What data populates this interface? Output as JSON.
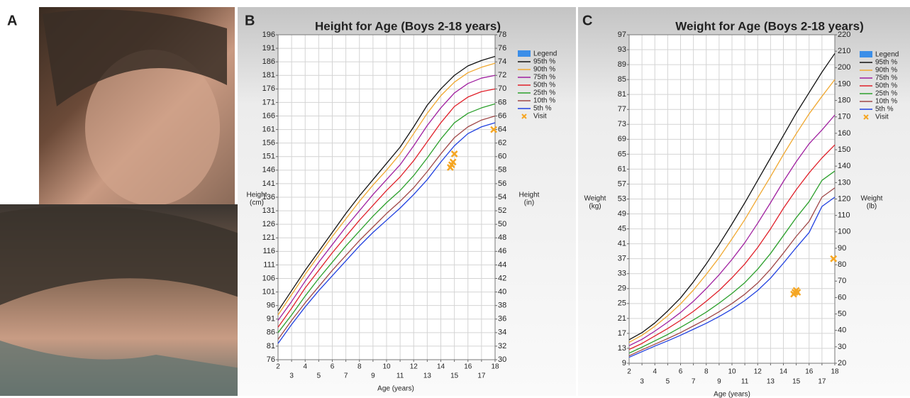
{
  "panel_labels": [
    "A",
    "B",
    "C"
  ],
  "chart_data": [
    {
      "type": "line",
      "title": "Height for Age (Boys 2-18 years)",
      "xlabel": "Age (years)",
      "ylabel": [
        "Height",
        "(cm)"
      ],
      "y2label": [
        "Height",
        "(in)"
      ],
      "legend_title": "Legend",
      "legend_color": "#3b8ee8",
      "grid": true,
      "xlim": [
        2,
        18
      ],
      "xticks": [
        2,
        3,
        4,
        5,
        6,
        7,
        8,
        9,
        10,
        11,
        12,
        13,
        14,
        15,
        16,
        17,
        18
      ],
      "ylim": [
        76,
        196
      ],
      "yticks": [
        76,
        81,
        86,
        91,
        96,
        101,
        106,
        111,
        116,
        121,
        126,
        131,
        136,
        141,
        146,
        151,
        156,
        161,
        166,
        171,
        176,
        181,
        186,
        191,
        196
      ],
      "y2lim": [
        30,
        78
      ],
      "y2ticks": [
        30,
        32,
        34,
        36,
        38,
        40,
        42,
        44,
        46,
        48,
        50,
        52,
        54,
        56,
        58,
        60,
        62,
        64,
        66,
        68,
        70,
        72,
        74,
        76,
        78
      ],
      "x": [
        2,
        3,
        4,
        5,
        6,
        7,
        8,
        9,
        10,
        11,
        12,
        13,
        14,
        15,
        16,
        17,
        18
      ],
      "series": [
        {
          "name": "95th %",
          "color": "#111111",
          "values": [
            94,
            101.5,
            109,
            116,
            123,
            130,
            136.5,
            142.5,
            148.5,
            154.5,
            162,
            170,
            176,
            181,
            184.5,
            186.5,
            188
          ]
        },
        {
          "name": "90th %",
          "color": "#f0a830",
          "values": [
            92.5,
            100,
            107.5,
            114.5,
            121.5,
            128,
            134.5,
            140.5,
            146,
            152,
            159.5,
            167,
            173.5,
            178.5,
            182,
            184,
            185.5
          ]
        },
        {
          "name": "75th %",
          "color": "#a020a0",
          "values": [
            90.5,
            97.5,
            105,
            112,
            118.5,
            125,
            131,
            137,
            142.5,
            148,
            155,
            162.5,
            169,
            174.5,
            178,
            180,
            181
          ]
        },
        {
          "name": "50th %",
          "color": "#e0202a",
          "values": [
            88,
            95,
            102.5,
            109,
            115.5,
            121.5,
            127.5,
            133,
            138.5,
            143.5,
            149.5,
            156.5,
            163.5,
            169.5,
            173,
            175,
            176
          ]
        },
        {
          "name": "25th %",
          "color": "#2ca02c",
          "values": [
            86,
            92.5,
            99.5,
            106,
            112,
            118,
            123.5,
            129,
            134,
            138.5,
            144,
            150.5,
            157.5,
            163.5,
            167,
            169,
            170.5
          ]
        },
        {
          "name": "10th %",
          "color": "#a04848",
          "values": [
            83.5,
            90.5,
            97,
            103,
            109,
            114.5,
            120,
            125,
            130,
            134.5,
            139.5,
            145.5,
            152,
            158,
            162,
            164.5,
            166
          ]
        },
        {
          "name": "5th %",
          "color": "#2040e0",
          "values": [
            82,
            89,
            95.5,
            101.5,
            107,
            112.5,
            118,
            123,
            127.5,
            132,
            137,
            142.5,
            149,
            155,
            159.5,
            162,
            163.5
          ]
        },
        {
          "name": "Visit",
          "color": "#f5a623",
          "type": "scatter",
          "x": [
            14.7,
            14.8,
            14.9,
            15.0,
            17.9
          ],
          "values": [
            147,
            148,
            149,
            152,
            161
          ]
        }
      ]
    },
    {
      "type": "line",
      "title": "Weight for Age (Boys 2-18 years)",
      "xlabel": "Age (years)",
      "ylabel": [
        "Weight",
        "(kg)"
      ],
      "y2label": [
        "Weight",
        "(lb)"
      ],
      "legend_title": "Legend",
      "legend_color": "#3b8ee8",
      "grid": true,
      "xlim": [
        2,
        18
      ],
      "xticks": [
        2,
        3,
        4,
        5,
        6,
        7,
        8,
        9,
        10,
        11,
        12,
        13,
        14,
        15,
        16,
        17,
        18
      ],
      "ylim": [
        9,
        97
      ],
      "yticks": [
        9,
        13,
        17,
        21,
        25,
        29,
        33,
        37,
        41,
        45,
        49,
        53,
        57,
        61,
        65,
        69,
        73,
        77,
        81,
        85,
        89,
        93,
        97
      ],
      "y2lim": [
        20,
        220
      ],
      "y2ticks": [
        20,
        30,
        40,
        50,
        60,
        70,
        80,
        90,
        100,
        110,
        120,
        130,
        140,
        150,
        160,
        170,
        180,
        190,
        200,
        210,
        220
      ],
      "x": [
        2,
        3,
        4,
        5,
        6,
        7,
        8,
        9,
        10,
        11,
        12,
        13,
        14,
        15,
        16,
        17,
        18
      ],
      "series": [
        {
          "name": "95th %",
          "color": "#111111",
          "values": [
            15.3,
            17.2,
            19.8,
            23,
            26.5,
            30.8,
            35.6,
            40.8,
            46.3,
            52,
            58,
            64,
            70,
            76,
            81.5,
            87,
            92
          ]
        },
        {
          "name": "90th %",
          "color": "#f0a830",
          "values": [
            14.6,
            16.5,
            18.9,
            21.7,
            24.9,
            28.6,
            32.8,
            37.3,
            42.3,
            47.5,
            53.3,
            59,
            64.9,
            70.5,
            75.8,
            80.5,
            85
          ]
        },
        {
          "name": "75th %",
          "color": "#a020a0",
          "values": [
            13.7,
            15.4,
            17.6,
            20,
            22.6,
            25.6,
            29,
            32.7,
            36.8,
            41.3,
            46.5,
            52,
            57.7,
            63,
            67.8,
            71.5,
            75.5
          ]
        },
        {
          "name": "50th %",
          "color": "#e0202a",
          "values": [
            12.7,
            14.3,
            16.3,
            18.3,
            20.5,
            22.9,
            25.6,
            28.5,
            31.9,
            35.6,
            40,
            45,
            50.5,
            55.5,
            60,
            64,
            67.5
          ]
        },
        {
          "name": "25th %",
          "color": "#2ca02c",
          "values": [
            11.7,
            13.3,
            15,
            16.7,
            18.6,
            20.6,
            22.7,
            25.1,
            27.7,
            30.6,
            34.2,
            38.4,
            43.2,
            48,
            52.3,
            58,
            60.5
          ]
        },
        {
          "name": "10th %",
          "color": "#a04848",
          "values": [
            11,
            12.6,
            14.1,
            15.6,
            17.2,
            19,
            20.8,
            22.8,
            25,
            27.5,
            30.5,
            34.2,
            38.5,
            43,
            47,
            53.5,
            56
          ]
        },
        {
          "name": "5th %",
          "color": "#2040e0",
          "values": [
            10.6,
            12.1,
            13.6,
            15,
            16.5,
            18.1,
            19.7,
            21.5,
            23.5,
            25.8,
            28.5,
            31.8,
            35.8,
            40,
            44,
            51,
            53.5
          ]
        },
        {
          "name": "Visit",
          "color": "#f5a623",
          "type": "scatter",
          "x": [
            14.8,
            14.9,
            15.0,
            15.1,
            17.9
          ],
          "values": [
            27.5,
            28,
            28.5,
            28,
            37
          ]
        }
      ]
    }
  ]
}
